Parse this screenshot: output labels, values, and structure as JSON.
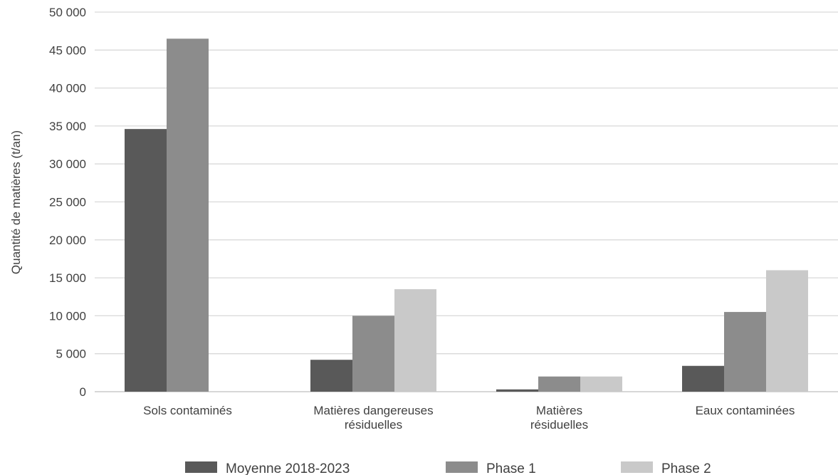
{
  "chart_data": {
    "type": "bar",
    "title": "",
    "xlabel": "",
    "ylabel": "Quantité de matières (t/an)",
    "ylim": [
      0,
      50000
    ],
    "y_ticks": [
      0,
      5000,
      10000,
      15000,
      20000,
      25000,
      30000,
      35000,
      40000,
      45000,
      50000
    ],
    "y_tick_labels": [
      "0",
      "5 000",
      "10 000",
      "15 000",
      "20 000",
      "25 000",
      "30 000",
      "35 000",
      "40 000",
      "45 000",
      "50 000"
    ],
    "grid": true,
    "legend_position": "bottom",
    "categories": [
      [
        "Sols contaminés"
      ],
      [
        "Matières dangereuses",
        "résiduelles"
      ],
      [
        "Matières",
        "résiduelles"
      ],
      [
        "Eaux contaminées"
      ]
    ],
    "series": [
      {
        "name": "Moyenne 2018-2023",
        "color": "#595959",
        "values": [
          34600,
          4200,
          300,
          3400
        ]
      },
      {
        "name": "Phase 1",
        "color": "#8c8c8c",
        "values": [
          46500,
          10000,
          2000,
          10500
        ]
      },
      {
        "name": "Phase 2",
        "color": "#c9c9c9",
        "values": [
          0,
          13500,
          2000,
          16000
        ]
      }
    ]
  }
}
